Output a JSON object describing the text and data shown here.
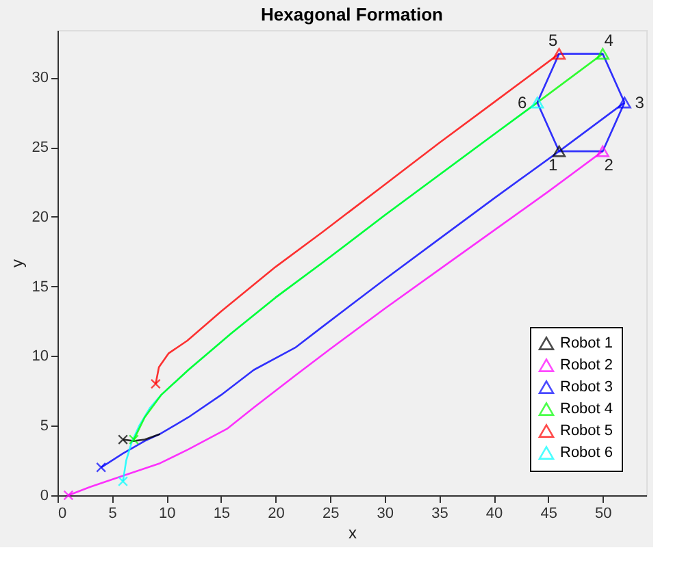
{
  "chart_data": {
    "type": "line",
    "title": "Hexagonal Formation",
    "xlabel": "x",
    "ylabel": "y",
    "xlim": [
      0,
      54
    ],
    "ylim": [
      0,
      33.4
    ],
    "xticks": [
      0,
      5,
      10,
      15,
      20,
      25,
      30,
      35,
      40,
      45,
      50
    ],
    "yticks": [
      0,
      5,
      10,
      15,
      20,
      25,
      30
    ],
    "grid": false,
    "legend": "bottom right",
    "series": [
      {
        "type": "line",
        "color": "#ff00ff",
        "marker": "none",
        "x": [
          1,
          3,
          6,
          9.4,
          12,
          15.6,
          18,
          21.8,
          25,
          30,
          35,
          40,
          45,
          50
        ],
        "values": [
          0,
          0.6,
          1.4,
          2.3,
          3.3,
          4.8,
          6.3,
          8.6,
          10.5,
          13.4,
          16.2,
          19.0,
          21.8,
          24.7
        ]
      },
      {
        "type": "line",
        "color": "#0000ff",
        "marker": "none",
        "x": [
          4,
          6,
          8,
          9.4,
          12,
          15,
          18,
          21.8,
          24.3,
          30,
          35,
          40,
          46,
          52
        ],
        "values": [
          2,
          3,
          3.9,
          4.4,
          5.6,
          7.2,
          9.0,
          10.6,
          12.1,
          15.5,
          18.4,
          21.3,
          24.7,
          28.2
        ]
      },
      {
        "type": "line",
        "color": "#000000",
        "marker": "none",
        "x": [
          6,
          7,
          8,
          9.4
        ],
        "values": [
          4,
          3.9,
          4.0,
          4.4
        ]
      },
      {
        "type": "line",
        "color": "#00ffff",
        "marker": "none",
        "x": [
          6,
          6.3,
          6.8,
          7.5,
          8.5,
          9.5,
          12,
          15.9,
          20,
          24.3,
          30,
          35,
          40,
          44
        ],
        "values": [
          1,
          2.5,
          3.8,
          5,
          6.3,
          7.2,
          9.0,
          11.6,
          14.2,
          16.7,
          20.1,
          23.0,
          25.9,
          28.2
        ]
      },
      {
        "type": "line",
        "color": "#00ff00",
        "marker": "none",
        "x": [
          7,
          8,
          9.5,
          12,
          15.9,
          20,
          24.3,
          30,
          35,
          40,
          44,
          50
        ],
        "values": [
          4,
          5.6,
          7.2,
          9.0,
          11.6,
          14.2,
          16.7,
          20.1,
          23.0,
          25.9,
          28.2,
          31.7
        ]
      },
      {
        "type": "line",
        "color": "#ff0000",
        "marker": "none",
        "x": [
          9,
          9.3,
          10.2,
          11.9,
          15,
          20,
          24.3,
          30,
          35,
          40,
          46
        ],
        "values": [
          8,
          9.2,
          10.2,
          11.1,
          13.2,
          16.4,
          18.9,
          22.3,
          25.3,
          28.2,
          31.7
        ]
      },
      {
        "type": "line",
        "color": "#0000ff",
        "marker": "none",
        "x": [
          44,
          46,
          50,
          52
        ],
        "values": [
          28.2,
          24.7,
          24.7,
          28.2
        ]
      },
      {
        "type": "line",
        "color": "#0000ff",
        "marker": "none",
        "x": [
          44,
          46,
          50,
          52
        ],
        "values": [
          28.2,
          31.7,
          31.7,
          28.2
        ]
      },
      {
        "type": "scatter",
        "marker": "cross",
        "x": [
          6,
          1,
          4,
          7,
          9,
          6
        ],
        "values": [
          4,
          0,
          2,
          4,
          8,
          1
        ],
        "colors": [
          "#000000",
          "#ff00ff",
          "#0000ff",
          "#00ff00",
          "#ff0000",
          "#00ffff"
        ]
      },
      {
        "type": "scatter",
        "name": "Robot 1",
        "color": "#000000",
        "marker": "triangle",
        "x": [
          46
        ],
        "values": [
          24.7
        ]
      },
      {
        "type": "scatter",
        "name": "Robot 2",
        "color": "#ff00ff",
        "marker": "triangle",
        "x": [
          50
        ],
        "values": [
          24.7
        ]
      },
      {
        "type": "scatter",
        "name": "Robot 3",
        "color": "#0000ff",
        "marker": "triangle",
        "x": [
          52
        ],
        "values": [
          28.2
        ]
      },
      {
        "type": "scatter",
        "name": "Robot 4",
        "color": "#00ff00",
        "marker": "triangle",
        "x": [
          50
        ],
        "values": [
          31.7
        ]
      },
      {
        "type": "scatter",
        "name": "Robot 5",
        "color": "#ff0000",
        "marker": "triangle",
        "x": [
          46
        ],
        "values": [
          31.7
        ]
      },
      {
        "type": "scatter",
        "name": "Robot 6",
        "color": "#00ffff",
        "marker": "triangle",
        "x": [
          44
        ],
        "values": [
          28.2
        ]
      }
    ],
    "annotations": [
      {
        "text": "1",
        "x": 46,
        "y": 24.7
      },
      {
        "text": "2",
        "x": 50,
        "y": 24.7
      },
      {
        "text": "3",
        "x": 52,
        "y": 28.2
      },
      {
        "text": "4",
        "x": 50,
        "y": 31.7
      },
      {
        "text": "5",
        "x": 46,
        "y": 31.7
      },
      {
        "text": "6",
        "x": 44,
        "y": 28.2
      }
    ]
  }
}
